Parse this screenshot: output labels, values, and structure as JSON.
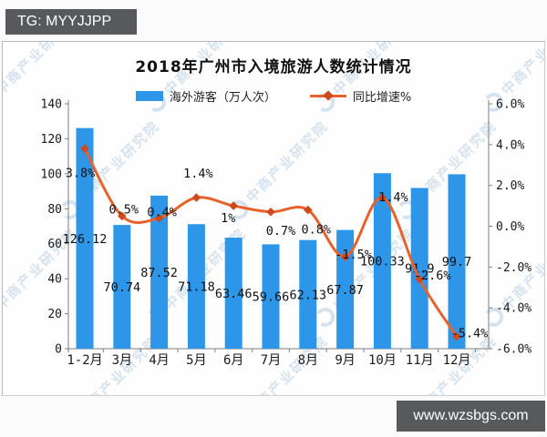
{
  "banners": {
    "top_left": "TG: MYYJJPP",
    "bottom_right": "www.wzsbgs.com"
  },
  "watermark": {
    "text": "中商产业研究院"
  },
  "colors": {
    "bar": "#2d96e8",
    "line": "#e8622d",
    "marker": "#cc4a1e",
    "banner_bg": "#58595b",
    "watermark": "#b7cde2",
    "axis": "#7f7f7f"
  },
  "chart_data": {
    "type": "bar+line combo",
    "title": "2018年广州市入境旅游人数统计情况",
    "categories": [
      "1-2月",
      "3月",
      "4月",
      "5月",
      "6月",
      "7月",
      "8月",
      "9月",
      "10月",
      "11月",
      "12月"
    ],
    "series": [
      {
        "name": "海外游客（万人次）",
        "type": "bar",
        "axis": "left",
        "values": [
          126.12,
          70.74,
          87.52,
          71.18,
          63.46,
          59.66,
          62.13,
          67.87,
          100.33,
          91.9,
          99.7
        ],
        "labels": [
          "126.12",
          "70.74",
          "87.52",
          "71.18",
          "63.46",
          "59.66",
          "62.13",
          "67.87",
          "100.33",
          "91.9",
          "99.7"
        ]
      },
      {
        "name": "同比增速%",
        "type": "line",
        "axis": "right",
        "values": [
          3.8,
          0.5,
          0.4,
          1.4,
          1.0,
          0.7,
          0.8,
          -1.5,
          1.4,
          -2.6,
          -5.4
        ],
        "labels": [
          "3.8%",
          "0.5%",
          "0.4%",
          "1.4%",
          "1%",
          "0.7%",
          "0.8%",
          "-1.5%",
          "1.4%",
          "-2.6%",
          "-5.4%"
        ]
      }
    ],
    "left_axis": {
      "min": 0,
      "max": 140,
      "step": 20
    },
    "right_axis": {
      "min": -6,
      "max": 6,
      "step": 2,
      "decimals": 1,
      "suffix": "%"
    },
    "grid": false,
    "legend_position": "top-center"
  }
}
